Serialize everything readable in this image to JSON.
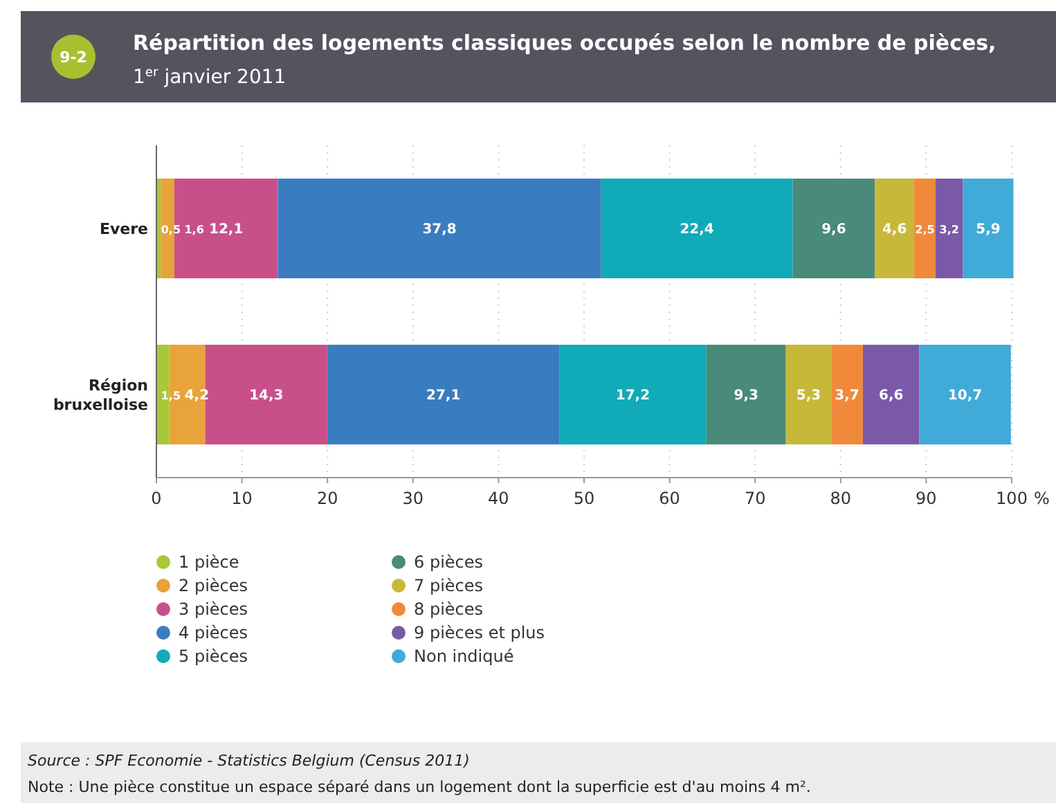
{
  "chart_data": {
    "type": "bar",
    "orientation": "horizontal",
    "stacked": true,
    "title": "Répartition des logements classiques occupés selon le nombre de pièces,",
    "subtitle": "1$^{er}$ janvier 2011",
    "xlabel": "%",
    "categories": [
      "Evere",
      "Région bruxelloise"
    ],
    "series": [
      {
        "name": "1 pièce",
        "color": "#a8c83a",
        "values": [
          0.5,
          1.5
        ],
        "value_labels": [
          "0,5",
          "1,5"
        ]
      },
      {
        "name": "2 pièces",
        "color": "#e8a33a",
        "values": [
          1.6,
          4.2
        ],
        "value_labels": [
          "1,6",
          "4,2"
        ]
      },
      {
        "name": "3 pièces",
        "color": "#c8508a",
        "values": [
          12.1,
          14.3
        ],
        "value_labels": [
          "12,1",
          "14,3"
        ]
      },
      {
        "name": "4 pièces",
        "color": "#3a7cc0",
        "values": [
          37.8,
          27.1
        ],
        "value_labels": [
          "37,8",
          "27,1"
        ]
      },
      {
        "name": "5 pièces",
        "color": "#10aab8",
        "values": [
          22.4,
          17.2
        ],
        "value_labels": [
          "22,4",
          "17,2"
        ]
      },
      {
        "name": "6 pièces",
        "color": "#4a8a7a",
        "values": [
          9.6,
          9.3
        ],
        "value_labels": [
          "9,6",
          "9,3"
        ]
      },
      {
        "name": "7 pièces",
        "color": "#c8b83a",
        "values": [
          4.6,
          5.3
        ],
        "value_labels": [
          "4,6",
          "5,3"
        ]
      },
      {
        "name": "8 pièces",
        "color": "#f08a3a",
        "values": [
          2.5,
          3.7
        ],
        "value_labels": [
          "2,5",
          "3,7"
        ]
      },
      {
        "name": "9 pièces et plus",
        "color": "#7a5aa8",
        "values": [
          3.2,
          6.6
        ],
        "value_labels": [
          "3,2",
          "6,6"
        ]
      },
      {
        "name": "Non indiqué",
        "color": "#40aad8",
        "values": [
          5.9,
          10.7
        ],
        "value_labels": [
          "5,9",
          "10,7"
        ]
      }
    ],
    "xlim": [
      0,
      100
    ],
    "xticks": [
      0,
      10,
      20,
      30,
      40,
      50,
      60,
      70,
      80,
      90,
      100
    ],
    "grid": "x",
    "legend": "bottom left",
    "annotations": [
      "9-2",
      "Source : SPF Economie - Statistics Belgium (Census 2011)",
      "Note : Une pièce constitue un espace séparé dans un logement dont la superficie est d'au moins 4 m²."
    ]
  }
}
